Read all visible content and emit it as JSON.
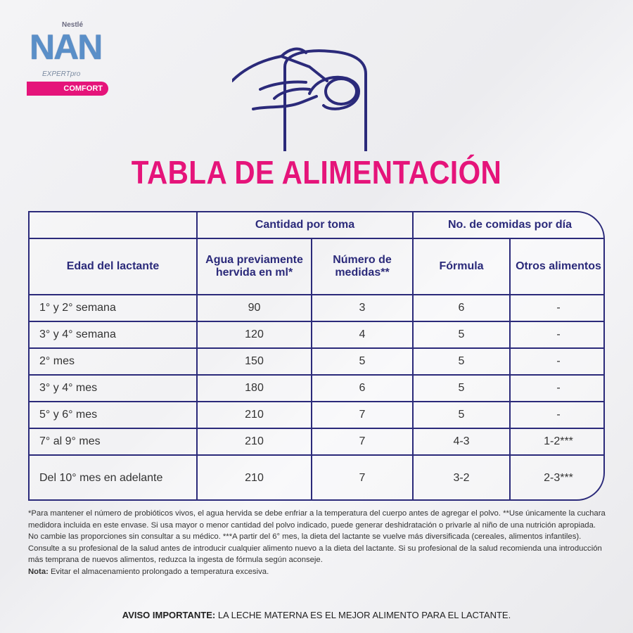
{
  "logo": {
    "brand": "Nestlé",
    "name": "NAN",
    "line": "EXPERTpro",
    "variant": "COMFORT"
  },
  "title": "TABLA DE ALIMENTACIÓN",
  "table": {
    "group_headers": [
      "Cantidad por toma",
      "No. de comidas por día"
    ],
    "headers": [
      "Edad del lactante",
      "Agua previamente hervida en ml*",
      "Número de medidas**",
      "Fórmula",
      "Otros alimentos"
    ],
    "rows": [
      [
        "1° y 2° semana",
        "90",
        "3",
        "6",
        "-"
      ],
      [
        "3° y 4° semana",
        "120",
        "4",
        "5",
        "-"
      ],
      [
        "2° mes",
        "150",
        "5",
        "5",
        "-"
      ],
      [
        "3° y 4° mes",
        "180",
        "6",
        "5",
        "-"
      ],
      [
        "5° y 6° mes",
        "210",
        "7",
        "5",
        "-"
      ],
      [
        "7° al 9° mes",
        "210",
        "7",
        "4-3",
        "1-2***"
      ],
      [
        "Del 10° mes en adelante",
        "210",
        "7",
        "3-2",
        "2-3***"
      ]
    ]
  },
  "footnote": "*Para mantener el número de probióticos vivos, el agua hervida se debe enfriar a la temperatura del cuerpo antes de agregar el polvo. **Use únicamente la cuchara medidora incluida en este envase. Si usa mayor o menor cantidad del polvo indicado, puede generar deshidratación o privarle al niño de una nutrición apropiada. No cambie las proporciones sin consultar a su médico. ***A partir del 6° mes, la dieta del lactante se vuelve más diversificada (cereales, alimentos infantiles). Consulte a su profesional de la salud antes de introducir cualquier alimento nuevo a la dieta del lactante. Si su profesional de la salud recomienda una introducción más temprana de nuevos alimentos, reduzca la ingesta de fórmula según aconseje.",
  "note": {
    "label": "Nota:",
    "text": "Evitar el almacenamiento prolongado a temperatura excesiva."
  },
  "notice": {
    "label": "AVISO IMPORTANTE:",
    "text": "LA LECHE MATERNA ES EL MEJOR ALIMENTO PARA EL LACTANTE."
  }
}
